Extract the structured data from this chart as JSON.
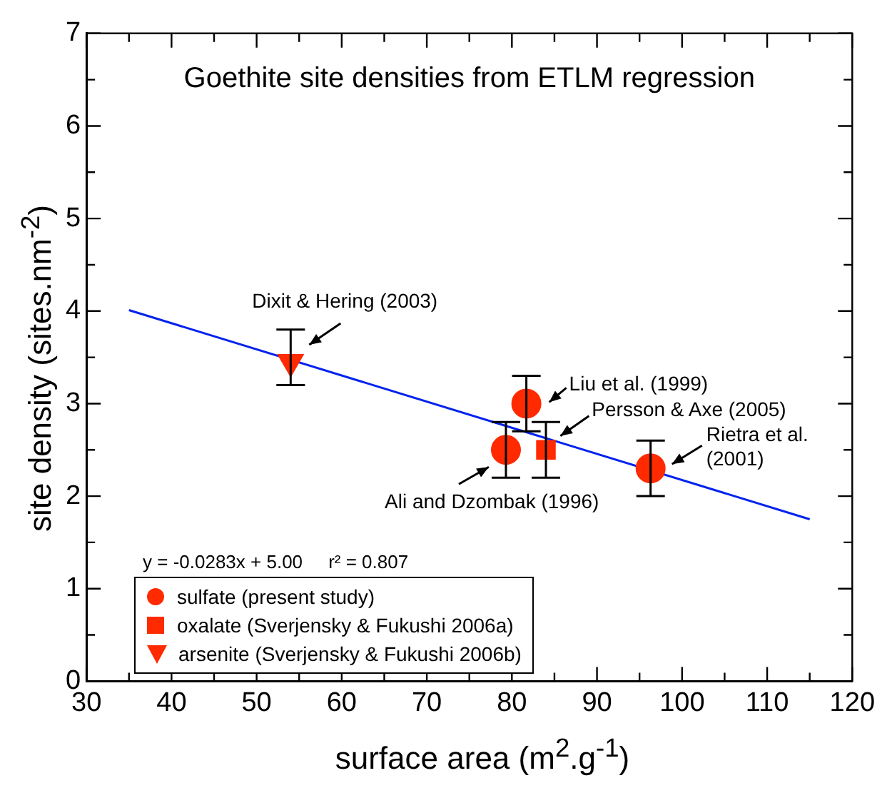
{
  "chart_data": {
    "type": "scatter",
    "title": "Goethite site densities from ETLM regression",
    "xlabel": "surface area (m$^{2}$.g$^{-1}$)",
    "ylabel": "site density (sites.nm$^{-2}$)",
    "xlim": [
      30,
      120
    ],
    "xticks": [
      30,
      {
        "value": 35,
        "label": null
      },
      40,
      {
        "value": 45,
        "label": null
      },
      50,
      {
        "value": 55,
        "label": null
      },
      60,
      {
        "value": 65,
        "label": null
      },
      70,
      {
        "value": 75,
        "label": null
      },
      80,
      {
        "value": 85,
        "label": null
      },
      90,
      {
        "value": 95,
        "label": null
      },
      100,
      {
        "value": 105,
        "label": null
      },
      110,
      {
        "value": 115,
        "label": null
      },
      120
    ],
    "ylim": [
      0,
      7
    ],
    "yticks": [
      0,
      {
        "value": 0.5,
        "label": null
      },
      1,
      {
        "value": 1.5,
        "label": null
      },
      2,
      {
        "value": 2.5,
        "label": null
      },
      3,
      {
        "value": 3.5,
        "label": null
      },
      4,
      {
        "value": 4.5,
        "label": null
      },
      5,
      {
        "value": 5.5,
        "label": null
      },
      6,
      {
        "value": 6.5,
        "label": null
      },
      7
    ],
    "grid": false,
    "legend": "bottom left",
    "series": [
      {
        "name": "sulfate (present study)",
        "color": "#ff2a00",
        "marker": "circle",
        "x": [
          81.7,
          79.3,
          96.3
        ],
        "values": [
          3.0,
          2.5,
          2.3
        ],
        "errors": [
          0.3,
          0.3,
          0.3
        ]
      },
      {
        "name": "oxalate (Sverjensky & Fukushi 2006a)",
        "color": "#ff2a00",
        "marker": "square",
        "x": [
          84
        ],
        "values": [
          2.5
        ],
        "errors": [
          0.3
        ]
      },
      {
        "name": "arsenite (Sverjensky & Fukushi 2006b)",
        "color": "#ff2a00",
        "marker": "triangle",
        "x": [
          54
        ],
        "values": [
          3.45
        ],
        "errors": [
          [
            3.2,
            3.8
          ]
        ]
      },
      {
        "type": "line",
        "color": "#0022ee",
        "marker": "none",
        "line_style": "solid",
        "x": [
          35,
          115
        ],
        "values": [
          4.01,
          1.75
        ]
      }
    ],
    "annotations": [
      {
        "text": "Dixit & Hering (2003)",
        "x": 54,
        "y": 3.45
      },
      {
        "text": "Liu et al. (1999)",
        "x": 81.7,
        "y": 3.0
      },
      {
        "text": "Ali and Dzombak (1996)",
        "x": 79.3,
        "y": 2.5
      },
      {
        "text": "Persson & Axe (2005)",
        "x": 85.7,
        "y": 2.65
      },
      {
        "text": "Rietra et al.\n(2001)",
        "x": 96.3,
        "y": 2.3
      },
      "y = -0.0283x + 5.00     r² = 0.807"
    ]
  }
}
